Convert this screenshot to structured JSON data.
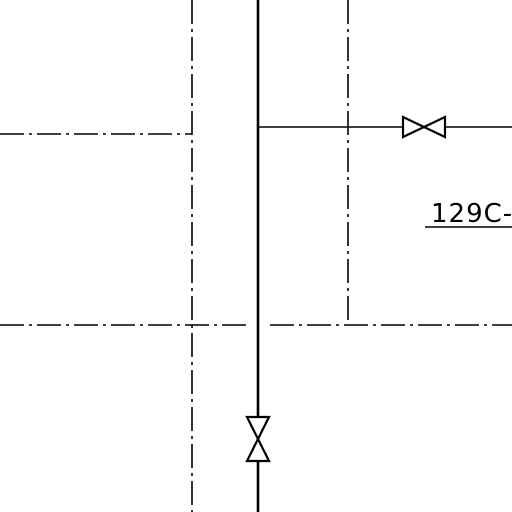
{
  "diagram": {
    "room_label": "129C-",
    "colors": {
      "background": "#ffffff",
      "line": "#000000"
    },
    "symbols": {
      "valve_horizontal": "gate-valve-icon",
      "valve_vertical": "gate-valve-icon"
    }
  }
}
